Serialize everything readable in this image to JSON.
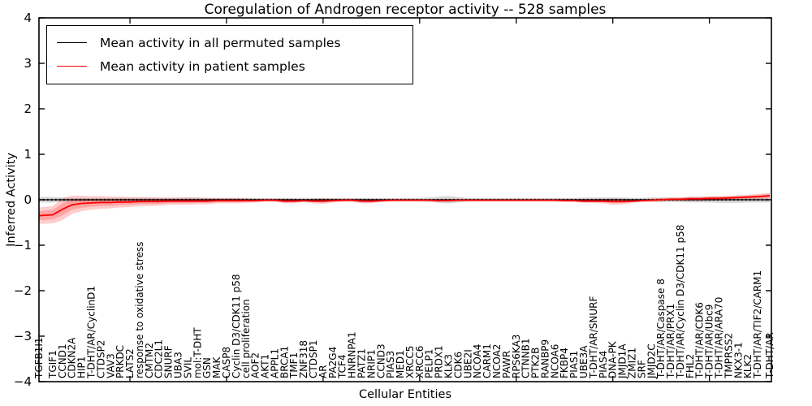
{
  "chart_data": {
    "type": "line",
    "title": "Coregulation of Androgen receptor activity -- 528 samples",
    "xlabel": "Cellular Entities",
    "ylabel": "Inferred Activity",
    "ylim": [
      -4,
      4
    ],
    "grid": false,
    "y_tick_values": [
      4,
      3,
      2,
      1,
      0,
      -1,
      -2,
      -3,
      -4
    ],
    "y_tick_labels": [
      "4",
      "3",
      "2",
      "1",
      "0",
      "−1",
      "−2",
      "−3",
      "−4"
    ],
    "x_tick_every": 10,
    "legend": {
      "position": "upper left",
      "entries": [
        {
          "label": "Mean activity in all permuted samples",
          "color": "#000000"
        },
        {
          "label": "Mean activity in patient samples",
          "color": "#ff0000"
        }
      ]
    },
    "colors": {
      "patient_line": "#ff0000",
      "patient_band_fill": "rgba(255,0,0,0.20)",
      "permuted_line": "#000000",
      "permuted_band_fill": "rgba(0,0,0,0.16)"
    },
    "x_labels": [
      "TGFB1I1",
      "TGIF1",
      "CCND1",
      "CDKN2A",
      "HIP1",
      "T-DHT/AR/CyclinD1",
      "CTDSP2",
      "VAV3",
      "PRKDC",
      "LATS2",
      "response to oxidative stress",
      "CMTM2",
      "CDC2L1",
      "SNURF",
      "UBA3",
      "SVIL",
      "mol:T-DHT",
      "GSN",
      "MAK",
      "CASP8",
      "Cyclin D3/CDK11 p58",
      "cell proliferation",
      "AOF2",
      "AKT1",
      "APPL1",
      "BRCA1",
      "TMF1",
      "ZNF318",
      "CTDSP1",
      "AR",
      "PA2G4",
      "TCF4",
      "HNRNPA1",
      "PATZ1",
      "NRIP1",
      "CCND3",
      "PIAS3",
      "MED1",
      "XRCC5",
      "XRCC6",
      "PELP1",
      "PRDX1",
      "KLK3",
      "CDK6",
      "UBE2I",
      "NCOA4",
      "CARM1",
      "NCOA2",
      "PAWR",
      "RPS6KA3",
      "CTNNB1",
      "PTK2B",
      "RANBP9",
      "NCOA6",
      "FKBP4",
      "PIAS1",
      "UBE3A",
      "T-DHT/AR/SNURF",
      "PIAS4",
      "DNA-PK",
      "JMJD1A",
      "ZMIZ1",
      "SRF",
      "JMJD2C",
      "T-DHT/AR/Caspase 8",
      "T-DHT/AR/PRX1",
      "T-DHT/AR/Cyclin D3/CDK11 p58",
      "FHL2",
      "T-DHT/AR/CDK6",
      "T-DHT/AR/Ubc9",
      "T-DHT/AR/ARA70",
      "TMPRSS2",
      "NKX3-1",
      "KLK2",
      "T-DHT/AR/TIF2/CARM1",
      "T-DHT/AR"
    ],
    "series": [
      {
        "name": "Mean activity in all permuted samples",
        "mean_value": 0.0,
        "band_halfwidth": [
          0.06,
          0.06,
          0.05,
          0.04,
          0.04,
          0.04,
          0.04,
          0.04,
          0.04,
          0.04,
          0.04,
          0.04,
          0.04,
          0.04,
          0.04,
          0.05,
          0.05,
          0.04,
          0.04,
          0.04,
          0.04,
          0.04,
          0.04,
          0.04,
          0.04,
          0.04,
          0.04,
          0.04,
          0.04,
          0.04,
          0.04,
          0.04,
          0.04,
          0.04,
          0.04,
          0.04,
          0.04,
          0.04,
          0.04,
          0.04,
          0.05,
          0.07,
          0.08,
          0.06,
          0.04,
          0.04,
          0.04,
          0.04,
          0.04,
          0.04,
          0.04,
          0.04,
          0.04,
          0.04,
          0.04,
          0.04,
          0.05,
          0.05,
          0.05,
          0.05,
          0.05,
          0.04,
          0.04,
          0.05,
          0.05,
          0.05,
          0.05,
          0.06,
          0.06,
          0.06,
          0.07,
          0.07,
          0.07,
          0.06,
          0.06,
          0.06
        ]
      },
      {
        "name": "Mean activity in patient samples",
        "mean": [
          -0.35,
          -0.33,
          -0.21,
          -0.11,
          -0.08,
          -0.07,
          -0.06,
          -0.06,
          -0.05,
          -0.05,
          -0.04,
          -0.04,
          -0.04,
          -0.03,
          -0.03,
          -0.03,
          -0.03,
          -0.03,
          -0.02,
          -0.02,
          -0.02,
          -0.02,
          -0.02,
          -0.01,
          -0.01,
          -0.03,
          -0.03,
          -0.02,
          -0.03,
          -0.03,
          -0.02,
          -0.01,
          -0.01,
          -0.03,
          -0.03,
          -0.02,
          -0.01,
          -0.01,
          -0.01,
          -0.01,
          -0.01,
          -0.02,
          -0.02,
          -0.01,
          -0.01,
          -0.01,
          -0.01,
          -0.01,
          -0.01,
          -0.01,
          -0.01,
          -0.01,
          -0.01,
          -0.01,
          -0.02,
          -0.02,
          -0.03,
          -0.03,
          -0.03,
          -0.04,
          -0.04,
          -0.03,
          -0.02,
          -0.01,
          0.0,
          0.01,
          0.01,
          0.02,
          0.02,
          0.03,
          0.03,
          0.04,
          0.05,
          0.06,
          0.07,
          0.09
        ],
        "band_halfwidth": [
          0.18,
          0.19,
          0.24,
          0.2,
          0.17,
          0.15,
          0.14,
          0.13,
          0.12,
          0.11,
          0.1,
          0.1,
          0.09,
          0.08,
          0.08,
          0.08,
          0.07,
          0.07,
          0.06,
          0.06,
          0.06,
          0.05,
          0.04,
          0.03,
          0.03,
          0.05,
          0.05,
          0.03,
          0.05,
          0.06,
          0.04,
          0.03,
          0.03,
          0.05,
          0.05,
          0.03,
          0.02,
          0.02,
          0.02,
          0.02,
          0.02,
          0.03,
          0.03,
          0.02,
          0.02,
          0.02,
          0.02,
          0.02,
          0.02,
          0.02,
          0.02,
          0.02,
          0.02,
          0.02,
          0.03,
          0.03,
          0.04,
          0.04,
          0.05,
          0.07,
          0.06,
          0.04,
          0.03,
          0.03,
          0.04,
          0.04,
          0.04,
          0.05,
          0.05,
          0.05,
          0.05,
          0.05,
          0.05,
          0.05,
          0.06,
          0.06
        ]
      }
    ]
  }
}
